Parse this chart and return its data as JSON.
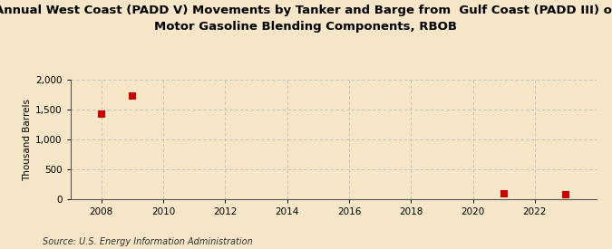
{
  "title": "Annual West Coast (PADD V) Movements by Tanker and Barge from  Gulf Coast (PADD III) of\nMotor Gasoline Blending Components, RBOB",
  "ylabel": "Thousand Barrels",
  "source": "Source: U.S. Energy Information Administration",
  "background_color": "#f5e6c8",
  "plot_bg_color": "#f5e6c8",
  "data_x": [
    2008,
    2009,
    2021,
    2023
  ],
  "data_y": [
    1421,
    1726,
    96,
    80
  ],
  "marker_color": "#cc0000",
  "marker_size": 36,
  "xlim": [
    2007.0,
    2024.0
  ],
  "ylim": [
    0,
    2000
  ],
  "yticks": [
    0,
    500,
    1000,
    1500,
    2000
  ],
  "xticks": [
    2008,
    2010,
    2012,
    2014,
    2016,
    2018,
    2020,
    2022
  ],
  "grid_color": "#bbbbbb",
  "title_fontsize": 9.5,
  "axis_fontsize": 7.5,
  "tick_fontsize": 7.5,
  "source_fontsize": 7.0
}
